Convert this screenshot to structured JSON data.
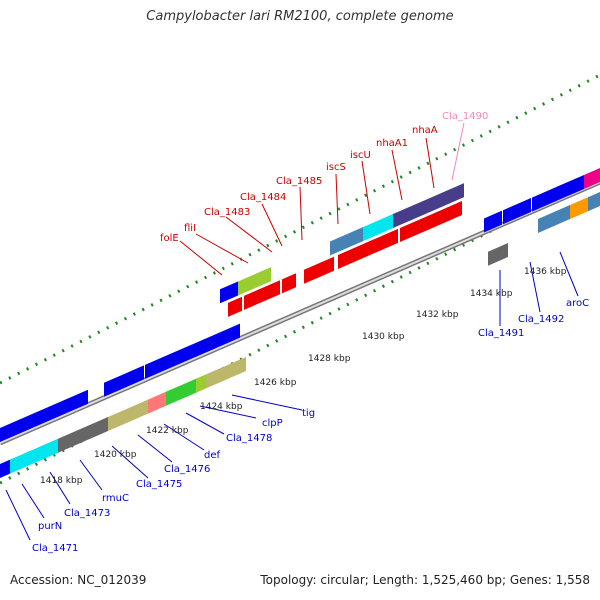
{
  "title": "Campylobacter lari RM2100, complete genome",
  "footer": {
    "accession": "Accession: NC_012039",
    "summary": "Topology: circular; Length: 1,525,460 bp; Genes: 1,558"
  },
  "ticks": [
    "1418 kbp",
    "1420 kbp",
    "1422 kbp",
    "1424 kbp",
    "1426 kbp",
    "1428 kbp",
    "1430 kbp",
    "1432 kbp",
    "1434 kbp",
    "1436 kbp"
  ],
  "gene_labels_top": [
    "folE",
    "fliI",
    "Cla_1483",
    "Cla_1484",
    "Cla_1485",
    "iscS",
    "iscU",
    "nhaA1",
    "nhaA",
    "Cla_1490"
  ],
  "gene_labels_bottom": [
    "Cla_1471",
    "purN",
    "Cla_1473",
    "rmuC",
    "Cla_1475",
    "Cla_1476",
    "def",
    "Cla_1478",
    "clpP",
    "tig",
    "Cla_1491",
    "Cla_1492",
    "aroC"
  ],
  "colors": {
    "red_label": "#cc0000",
    "blue_label": "#0000cc",
    "pink_label": "#ee88bb",
    "backbone": "#888888",
    "tick": "#228822",
    "gene_red": "#ee0000",
    "gene_blue": "#0000ee",
    "gene_cyan": "#00e5ee",
    "gene_steel": "#4682b4",
    "gene_slate": "#483d8b",
    "gene_khaki": "#bdb76b",
    "gene_green": "#33cc33",
    "gene_gray": "#666666"
  }
}
